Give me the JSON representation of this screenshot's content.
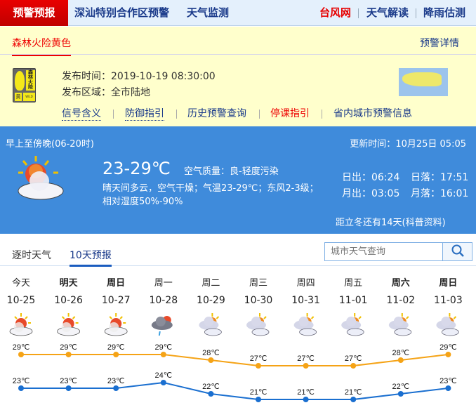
{
  "nav": {
    "brand": "预警预报",
    "items": [
      "深汕特别合作区预警",
      "天气监测"
    ],
    "right": [
      "台风网",
      "天气解读",
      "降雨估测"
    ],
    "colors": {
      "brand_bg": "#d40000",
      "typhoon": "#e60000",
      "link": "#1a3a8a"
    }
  },
  "warning": {
    "tab": "森林火险黄色",
    "detail_link": "预警详情",
    "signal_text": "森林火险",
    "signal_level": "黄",
    "signal_en": "WILD FIRE",
    "time_label": "发布时间：",
    "time": "2019-10-19 08:30:00",
    "area_label": "发布区域：",
    "area": "全市陆地",
    "links": [
      "信号含义",
      "防御指引",
      "历史预警查询",
      "停课指引",
      "省内城市预警信息"
    ]
  },
  "now": {
    "period": "早上至傍晚(06-20时)",
    "update_label": "更新时间：",
    "update": "10月25日 05:05",
    "temp": "23-29℃",
    "air_label": "空气质量：",
    "air": "良-轻度污染",
    "desc1": "晴天间多云，空气干燥；气温23-29℃；东风2-3级；",
    "desc2": "相对湿度50%-90%",
    "sunrise": "日出：06:24",
    "sunset": "日落：17:51",
    "moonrise": "月出：03:05",
    "moonset": "月落：16:01",
    "notice": "距立冬还有14天(科普资料)",
    "icon": "sunny-cloudy-icon"
  },
  "tabs": [
    {
      "label": "逐时天气"
    },
    {
      "label": "10天预报",
      "active": true
    }
  ],
  "search": {
    "placeholder": "城市天气查询"
  },
  "forecast": [
    {
      "day": "今天",
      "date": "10-25",
      "icon": "partly-cloudy",
      "high": 29,
      "low": 23,
      "bold": false
    },
    {
      "day": "明天",
      "date": "10-26",
      "icon": "partly-cloudy",
      "high": 29,
      "low": 23,
      "bold": true
    },
    {
      "day": "周日",
      "date": "10-27",
      "icon": "partly-cloudy",
      "high": 29,
      "low": 23,
      "bold": true
    },
    {
      "day": "周一",
      "date": "10-28",
      "icon": "rain-shower",
      "high": 29,
      "low": 24,
      "bold": false
    },
    {
      "day": "周二",
      "date": "10-29",
      "icon": "cloudy",
      "high": 28,
      "low": 22,
      "bold": false
    },
    {
      "day": "周三",
      "date": "10-30",
      "icon": "cloudy",
      "high": 27,
      "low": 21,
      "bold": false
    },
    {
      "day": "周四",
      "date": "10-31",
      "icon": "cloudy",
      "high": 27,
      "low": 21,
      "bold": false
    },
    {
      "day": "周五",
      "date": "11-01",
      "icon": "cloudy",
      "high": 27,
      "low": 21,
      "bold": false
    },
    {
      "day": "周六",
      "date": "11-02",
      "icon": "cloudy",
      "high": 28,
      "low": 22,
      "bold": true
    },
    {
      "day": "周日",
      "date": "11-03",
      "icon": "cloudy",
      "high": 29,
      "low": 23,
      "bold": true
    }
  ],
  "chart_data": {
    "type": "line",
    "categories": [
      "10-25",
      "10-26",
      "10-27",
      "10-28",
      "10-29",
      "10-30",
      "10-31",
      "11-01",
      "11-02",
      "11-03"
    ],
    "series": [
      {
        "values": [
          29,
          29,
          29,
          29,
          28,
          27,
          27,
          27,
          28,
          29
        ],
        "color": "#f5a316"
      },
      {
        "values": [
          23,
          23,
          23,
          24,
          22,
          21,
          21,
          21,
          22,
          23
        ],
        "color": "#1a6fd0"
      }
    ],
    "unit": "℃"
  }
}
